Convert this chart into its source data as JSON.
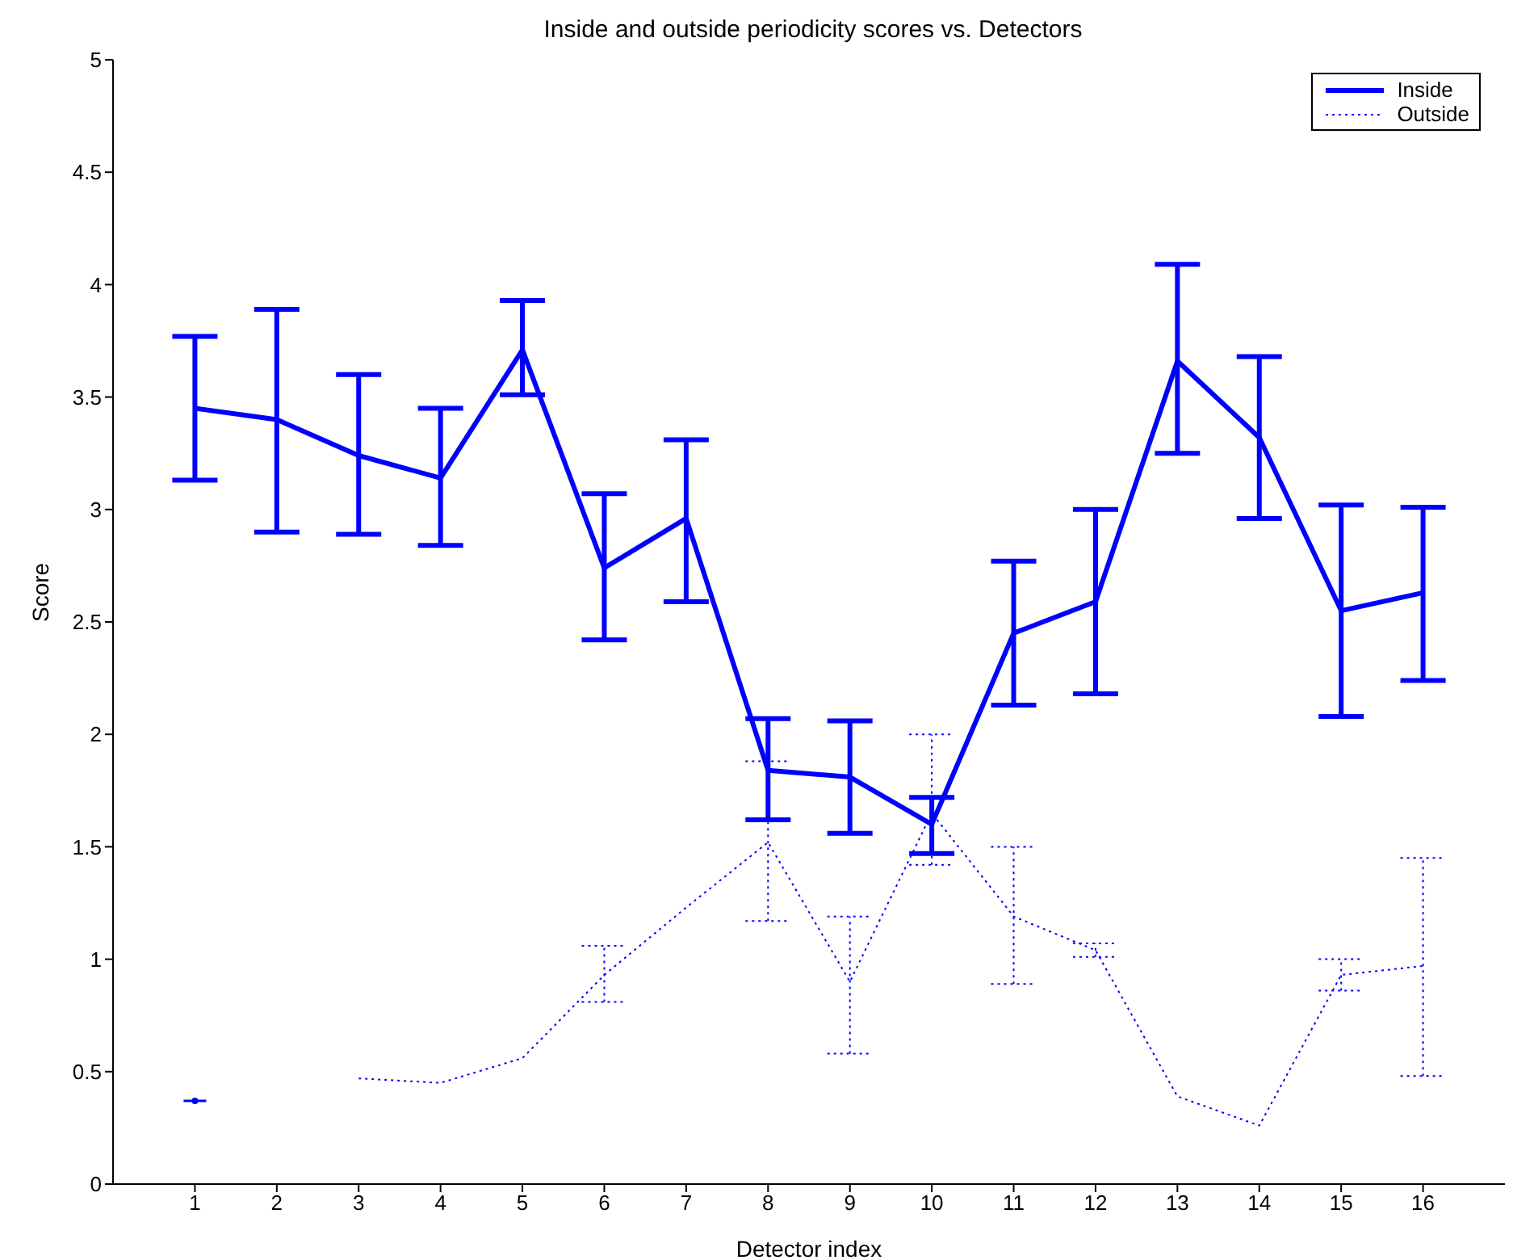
{
  "chart_data": {
    "type": "line",
    "title": "Inside and outside periodicity scores vs. Detectors",
    "xlabel": "Detector index",
    "ylabel": "Score",
    "x": [
      1,
      2,
      3,
      4,
      5,
      6,
      7,
      8,
      9,
      10,
      11,
      12,
      13,
      14,
      15,
      16
    ],
    "xlim": [
      0,
      17
    ],
    "xticks": [
      1,
      2,
      3,
      4,
      5,
      6,
      7,
      8,
      9,
      10,
      11,
      12,
      13,
      14,
      15,
      16
    ],
    "ylim": [
      0,
      5
    ],
    "yticks": [
      0,
      0.5,
      1,
      1.5,
      2,
      2.5,
      3,
      3.5,
      4,
      4.5,
      5
    ],
    "grid": false,
    "legend": "top right",
    "marker": "none",
    "series": [
      {
        "name": "Inside",
        "color": "#0000ff",
        "line_style": "solid",
        "values": [
          3.45,
          3.4,
          3.24,
          3.14,
          3.71,
          2.74,
          2.96,
          1.84,
          1.81,
          1.6,
          2.45,
          2.59,
          3.66,
          3.32,
          2.55,
          2.63
        ],
        "errors": [
          [
            3.13,
            3.77
          ],
          [
            2.9,
            3.89
          ],
          [
            2.89,
            3.6
          ],
          [
            2.84,
            3.45
          ],
          [
            3.51,
            3.93
          ],
          [
            2.42,
            3.07
          ],
          [
            2.59,
            3.31
          ],
          [
            1.62,
            2.07
          ],
          [
            1.56,
            2.06
          ],
          [
            1.47,
            1.72
          ],
          [
            2.13,
            2.77
          ],
          [
            2.18,
            3.0
          ],
          [
            3.25,
            4.09
          ],
          [
            2.96,
            3.68
          ],
          [
            2.08,
            3.02
          ],
          [
            2.24,
            3.01
          ]
        ]
      },
      {
        "name": "Outside",
        "color": "#0000ff",
        "line_style": "dotted",
        "values": [
          0.37,
          null,
          0.47,
          0.45,
          0.56,
          0.93,
          1.23,
          1.52,
          0.9,
          1.65,
          1.19,
          1.04,
          0.39,
          0.26,
          0.93,
          0.97
        ],
        "errors": [
          null,
          null,
          null,
          null,
          null,
          [
            0.81,
            1.06
          ],
          null,
          [
            1.17,
            1.88
          ],
          [
            0.58,
            1.19
          ],
          [
            1.42,
            2.0
          ],
          [
            0.89,
            1.5
          ],
          [
            1.01,
            1.07
          ],
          null,
          null,
          [
            0.86,
            1.0
          ],
          [
            0.48,
            1.45
          ]
        ]
      }
    ]
  }
}
